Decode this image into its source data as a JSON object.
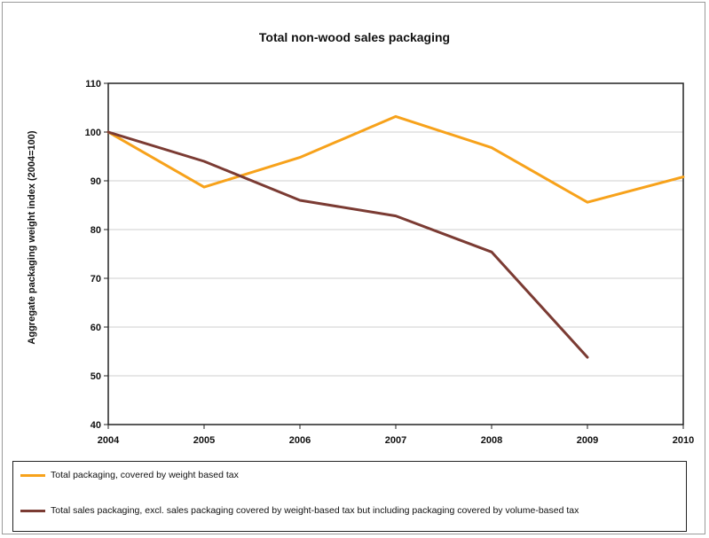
{
  "chart_data": {
    "type": "line",
    "title": "Total non-wood sales packaging",
    "xlabel": "",
    "ylabel": "Aggregate packaging weight index (2004=100)",
    "x": [
      "2004",
      "2005",
      "2006",
      "2007",
      "2008",
      "2009",
      "2010"
    ],
    "ylim": [
      40,
      110
    ],
    "yticks": [
      40,
      50,
      60,
      70,
      80,
      90,
      100,
      110
    ],
    "grid": true,
    "legend_position": "bottom",
    "series": [
      {
        "name": "Total packaging, covered by weight based tax",
        "color": "#F7A21B",
        "values": [
          100,
          88.7,
          94.8,
          103.2,
          96.8,
          85.6,
          90.8
        ]
      },
      {
        "name": "Total sales packaging, excl. sales packaging covered by weight-based tax but including packaging covered by volume-based tax",
        "color": "#7B3B33",
        "values": [
          100,
          94,
          86,
          82.8,
          75.4,
          53.8,
          null
        ]
      }
    ]
  }
}
